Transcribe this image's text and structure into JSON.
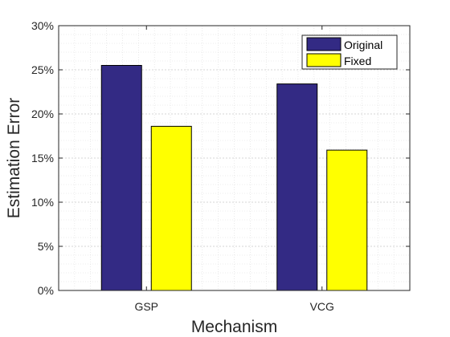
{
  "chart_data": {
    "type": "bar",
    "title": "",
    "xlabel": "Mechanism",
    "ylabel": "Estimation Error",
    "categories": [
      "GSP",
      "VCG"
    ],
    "series": [
      {
        "name": "Original",
        "values": [
          25.5,
          23.4
        ],
        "color": "#332a84"
      },
      {
        "name": "Fixed",
        "values": [
          18.6,
          15.9
        ],
        "color": "#ffff00"
      }
    ],
    "ylim": [
      0,
      30
    ],
    "yticks": [
      "0%",
      "5%",
      "10%",
      "15%",
      "20%",
      "25%",
      "30%"
    ],
    "grid": true,
    "legend_position": "top-right"
  }
}
